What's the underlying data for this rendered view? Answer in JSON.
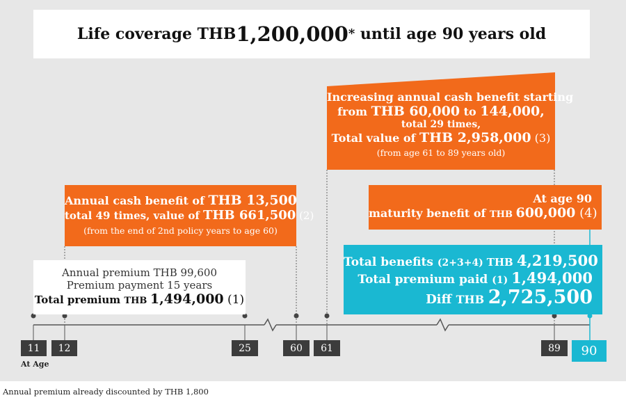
{
  "title": {
    "prefix": "Life coverage THB ",
    "amount": "1,200,000",
    "asterisk": "*",
    "suffix": " until age 90 years old"
  },
  "annual_benefit": {
    "line1_prefix": "Annual cash benefit of ",
    "line1_amount": "THB 13,500",
    "line2_prefix": "total 49 times, value of ",
    "line2_amount": "THB 661,500",
    "line2_ref": " (2)",
    "line3": "(from the end of 2nd policy years to age 60)"
  },
  "increasing_benefit": {
    "line1": "Increasing annual cash benefit starting",
    "line2_prefix": "from ",
    "line2_from": "THB 60,000",
    "line2_mid": " to ",
    "line2_to": "144,000,",
    "line3": "total 29 times,",
    "line4_prefix": "Total value of ",
    "line4_amount": "THB 2,958,000",
    "line4_ref": " (3)",
    "line5": "(from age 61 to 89 years old)"
  },
  "maturity": {
    "line1": "At age 90",
    "line2_prefix": "maturity benefit of ",
    "line2_currency": "THB ",
    "line2_amount": "600,000",
    "line2_ref": " (4)"
  },
  "premium": {
    "line1": "Annual premium THB 99,600",
    "line2": "Premium payment 15 years",
    "line3_prefix": "Total premium ",
    "line3_currency": "THB ",
    "line3_amount": "1,494,000",
    "line3_ref": " (1)"
  },
  "totals": {
    "line1_prefix": "Total benefits ",
    "line1_ref": "(2+3+4) ",
    "line1_currency": "THB ",
    "line1_amount": "4,219,500",
    "line2_prefix": "Total premium paid ",
    "line2_ref": "(1) ",
    "line2_amount": "1,494,000",
    "line3_prefix": "Diff ",
    "line3_currency": "THB ",
    "line3_amount": "2,725,500"
  },
  "ages": [
    "11",
    "12",
    "25",
    "60",
    "61",
    "89",
    "90"
  ],
  "at_age_label": "At Age",
  "footnote": "Annual premium already discounted by THB 1,800",
  "colors": {
    "orange": "#f26a1b",
    "cyan": "#1ab8d2",
    "dark": "#3c3c3c",
    "background": "#e7e7e7"
  }
}
